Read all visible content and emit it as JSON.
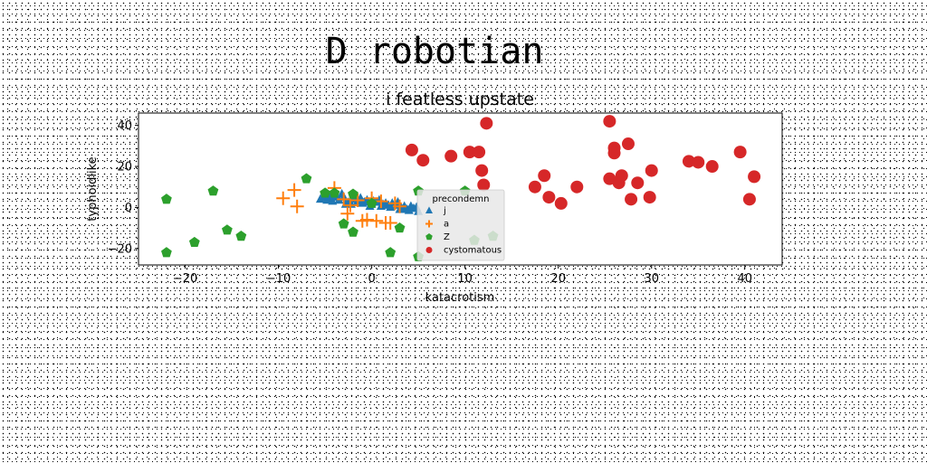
{
  "chart_data": {
    "type": "scatter",
    "suptitle": "D robotian",
    "title": "i featless upstate",
    "xlabel": "katacrotism",
    "ylabel": "typhoidlike",
    "xlim": [
      -25,
      44
    ],
    "ylim": [
      -28,
      46
    ],
    "xticks": [
      -20,
      -10,
      0,
      10,
      20,
      30,
      40
    ],
    "yticks": [
      -20,
      0,
      20,
      40
    ],
    "grid": false,
    "legend": {
      "title": "precondemn",
      "placement": "lower-center",
      "entries": [
        "j",
        "a",
        "Z",
        "cystomatous"
      ]
    },
    "series": [
      {
        "name": "j",
        "marker": "triangle",
        "color": "#1f77b4",
        "x": [
          -5.5,
          -5.0,
          -4.5,
          -4.0,
          -3.5,
          -3.0,
          -2.5,
          -2.0,
          -1.5,
          -1.0,
          -0.5,
          0.0,
          0.5,
          1.0,
          1.5,
          2.0,
          2.5,
          3.0,
          3.5,
          4.0,
          4.5,
          5.0,
          -5.2,
          -4.2,
          -3.2,
          -2.2,
          -1.2,
          -0.2,
          0.8,
          1.8,
          2.8,
          3.8,
          4.8,
          -4.8,
          -3.8,
          -2.8,
          -1.8,
          -0.8,
          0.2,
          1.2,
          2.2,
          3.2,
          4.2
        ],
        "y": [
          4.0,
          5.5,
          4.5,
          6.0,
          3.5,
          5.0,
          2.5,
          4.0,
          3.0,
          2.0,
          3.5,
          1.5,
          2.5,
          0.5,
          2.0,
          0.0,
          1.0,
          -1.0,
          0.5,
          -1.5,
          -0.5,
          -2.0,
          5.0,
          3.0,
          6.5,
          1.5,
          4.5,
          0.5,
          3.5,
          1.0,
          2.5,
          -1.0,
          0.0,
          3.5,
          5.0,
          1.5,
          4.0,
          2.5,
          3.0,
          1.5,
          2.0,
          -0.5,
          0.5
        ]
      },
      {
        "name": "a",
        "marker": "plus",
        "color": "#ff7f0e",
        "x": [
          -9.5,
          -8.3,
          -8.0,
          -4.0,
          -3.0,
          -2.6,
          -2.3,
          -1.5,
          -1.0,
          -0.5,
          0.0,
          0.5,
          1.0,
          1.5,
          2.0,
          2.5,
          3.0
        ],
        "y": [
          4.5,
          8.5,
          0.5,
          9.5,
          4.0,
          -3.0,
          1.0,
          3.5,
          -6.5,
          -6.0,
          4.5,
          -6.5,
          3.0,
          -7.5,
          -7.5,
          2.0,
          0.5
        ]
      },
      {
        "name": "Z",
        "marker": "pentagon",
        "color": "#2ca02c",
        "x": [
          -22.0,
          -22.0,
          -19.0,
          -17.0,
          -15.5,
          -14.0,
          -7.0,
          -5.0,
          -4.0,
          -3.0,
          -2.0,
          -2.0,
          0.0,
          2.0,
          3.0,
          5.0,
          5.0,
          10.0,
          11.0,
          13.0
        ],
        "y": [
          4.0,
          -22.0,
          -17.0,
          8.0,
          -11.0,
          -14.0,
          14.0,
          7.0,
          7.0,
          -8.0,
          -12.0,
          6.5,
          2.0,
          -22.0,
          -10.0,
          -24.0,
          8.0,
          8.0,
          -16.0,
          -14.0
        ]
      },
      {
        "name": "cystomatous",
        "marker": "circle",
        "color": "#d62728",
        "x": [
          4.3,
          5.5,
          8.5,
          10.5,
          11.5,
          11.8,
          12.0,
          12.3,
          17.5,
          18.5,
          19.0,
          20.3,
          22.0,
          25.5,
          25.5,
          26.0,
          26.0,
          26.5,
          26.8,
          27.5,
          27.8,
          28.5,
          29.8,
          30.0,
          34.0,
          35.0,
          36.5,
          39.5,
          40.5,
          41.0
        ],
        "y": [
          28.0,
          23.0,
          25.0,
          27.0,
          27.0,
          18.0,
          11.0,
          41.0,
          10.0,
          15.5,
          5.0,
          2.0,
          10.0,
          42.0,
          14.0,
          29.0,
          26.5,
          12.0,
          15.5,
          31.0,
          4.0,
          12.0,
          5.0,
          18.0,
          22.5,
          22.0,
          20.0,
          27.0,
          4.0,
          15.0
        ]
      }
    ]
  }
}
